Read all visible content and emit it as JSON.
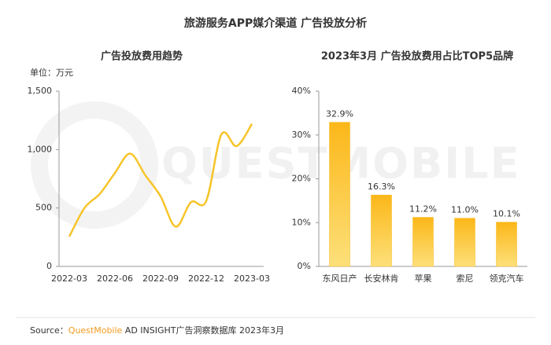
{
  "title": "旅游服务APP媒介渠道 广告投放分析",
  "watermark": "QUESTMOBILE",
  "source": {
    "label": "Source：",
    "brand": "QuestMobile",
    "text": " AD INSIGHT广告洞察数据库 2023年3月"
  },
  "chart_data": [
    {
      "type": "line",
      "title": "广告投放费用趋势",
      "y_unit": "单位：万元",
      "categories": [
        "2022-03",
        null,
        null,
        "2022-06",
        null,
        null,
        "2022-09",
        null,
        null,
        "2022-12",
        null,
        null,
        "2023-03"
      ],
      "values": [
        255,
        500,
        620,
        800,
        965,
        780,
        600,
        340,
        550,
        560,
        1130,
        1030,
        1220
      ],
      "color": "#f7c42a",
      "ylim": [
        0,
        1500
      ],
      "yticks": [
        0,
        500,
        {
          "value": 1000,
          "label": "1,000"
        },
        {
          "value": 1500,
          "label": "1,500"
        }
      ]
    },
    {
      "type": "bar",
      "title": "2023年3月 广告投放费用占比TOP5品牌",
      "categories": [
        "东风日产",
        "长安林肯",
        "苹果",
        "索尼",
        "领克汽车"
      ],
      "values": [
        32.9,
        16.3,
        11.2,
        11.0,
        10.1
      ],
      "value_labels": [
        "32.9%",
        "16.3%",
        "11.2%",
        "11.0%",
        "10.1%"
      ],
      "color": "#fbb719",
      "ylim": [
        0,
        40
      ],
      "yticks": [
        {
          "value": 0,
          "label": "0%"
        },
        {
          "value": 10,
          "label": "10%"
        },
        {
          "value": 20,
          "label": "20%"
        },
        {
          "value": 30,
          "label": "30%"
        },
        {
          "value": 40,
          "label": "40%"
        }
      ]
    }
  ]
}
